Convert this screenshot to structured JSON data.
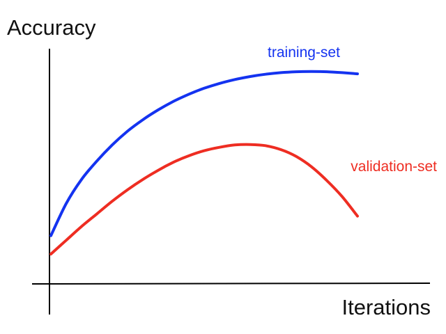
{
  "chart_data": {
    "type": "line",
    "title": "",
    "xlabel": "Iterations",
    "ylabel": "Accuracy",
    "grid": false,
    "legend": "none",
    "xlim": [
      0,
      100
    ],
    "ylim": [
      0,
      100
    ],
    "series": [
      {
        "name": "training-set",
        "color": "#1433f0",
        "x": [
          0,
          5,
          10,
          15,
          20,
          25,
          30,
          35,
          40,
          45,
          50,
          55,
          60,
          65,
          70,
          75,
          80,
          85,
          90,
          95,
          100
        ],
        "values": [
          21,
          35,
          45.5,
          53.5,
          60.5,
          66.5,
          71.5,
          75.8,
          79.5,
          82.6,
          85.2,
          87.3,
          89.0,
          90.3,
          91.3,
          92.0,
          92.4,
          92.5,
          92.4,
          92.0,
          91.5
        ]
      },
      {
        "name": "validation-set",
        "color": "#ee2d22",
        "x": [
          0,
          5,
          10,
          15,
          20,
          25,
          30,
          35,
          40,
          45,
          50,
          55,
          60,
          65,
          70,
          75,
          80,
          85,
          90,
          95,
          100
        ],
        "values": [
          13,
          19,
          25,
          30.5,
          36,
          41,
          45.5,
          49.5,
          53,
          55.8,
          58,
          59.5,
          60.5,
          60.7,
          60.2,
          58.5,
          55.5,
          51,
          45,
          38,
          29.5
        ]
      }
    ]
  }
}
